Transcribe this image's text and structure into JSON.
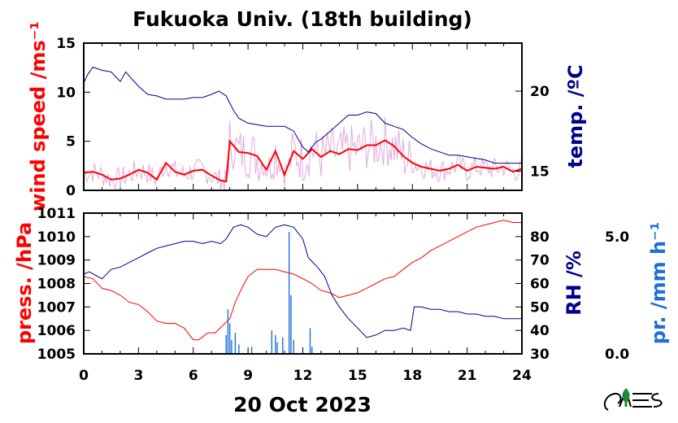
{
  "chart_data": [
    {
      "type": "line",
      "title": "Fukuoka Univ. (18th building)",
      "x_ticks": [
        "0",
        "3",
        "6",
        "9",
        "12",
        "15",
        "18",
        "21",
        "24"
      ],
      "xlim": [
        0,
        24
      ],
      "left_axis": {
        "label": "wind speed /ms⁻¹",
        "color": "#ff0000",
        "ylim": [
          0,
          15
        ],
        "ticks": [
          "0",
          "5",
          "10",
          "15"
        ]
      },
      "right_axis": {
        "label": "temp. /ºC",
        "color": "#00008b",
        "ylim": [
          13.8,
          23.0
        ],
        "ticks": [
          "15",
          "20"
        ]
      },
      "series": [
        {
          "axis": "left",
          "color": "#ff0000",
          "x": [
            0,
            0.5,
            1,
            1.5,
            2,
            2.5,
            3,
            3.5,
            4,
            4.5,
            5,
            5.5,
            6,
            6.5,
            7,
            7.5,
            7.8,
            8,
            8.5,
            9,
            9.5,
            10,
            10.5,
            11,
            11.5,
            12,
            12.5,
            13,
            13.5,
            14,
            14.5,
            15,
            15.5,
            16,
            16.5,
            17,
            17.5,
            18,
            18.5,
            19,
            19.5,
            20,
            20.5,
            21,
            21.5,
            22,
            22.5,
            23,
            23.5,
            24
          ],
          "y": [
            1.8,
            1.9,
            1.6,
            1.1,
            1.2,
            1.6,
            2.1,
            1.8,
            1.1,
            2.8,
            1.9,
            1.6,
            2.0,
            2.1,
            1.5,
            1.0,
            0.9,
            5.0,
            3.9,
            3.8,
            3.5,
            2.1,
            4.0,
            1.6,
            4.0,
            3.2,
            4.2,
            3.4,
            4.0,
            3.7,
            4.2,
            4.1,
            4.6,
            4.6,
            5.1,
            4.5,
            3.5,
            2.8,
            2.4,
            2.2,
            2.0,
            2.2,
            2.6,
            2.0,
            2.4,
            2.3,
            2.2,
            2.4,
            1.9,
            2.2
          ]
        },
        {
          "axis": "right",
          "color": "#00008b",
          "x": [
            0,
            0.2,
            0.5,
            1,
            1.5,
            2,
            2.3,
            2.6,
            3,
            3.5,
            4,
            4.5,
            5,
            5.5,
            6,
            6.5,
            7,
            7.4,
            7.8,
            8.2,
            8.5,
            9,
            9.5,
            10,
            10.5,
            11,
            11.5,
            12,
            12.3,
            12.7,
            13,
            13.5,
            14,
            14.5,
            15,
            15.5,
            16,
            16.5,
            17,
            17.5,
            18,
            18.5,
            19,
            19.5,
            20,
            20.5,
            21,
            21.5,
            22,
            22.5,
            23,
            23.5,
            24
          ],
          "y": [
            20.5,
            21.0,
            21.5,
            21.3,
            21.2,
            20.6,
            21.2,
            20.8,
            20.3,
            19.8,
            19.7,
            19.5,
            19.5,
            19.5,
            19.6,
            19.6,
            19.8,
            20.0,
            19.7,
            18.8,
            18.3,
            18.0,
            17.9,
            17.8,
            17.8,
            17.8,
            17.5,
            16.5,
            16.2,
            16.8,
            17.0,
            17.5,
            18.0,
            18.5,
            18.5,
            18.7,
            18.6,
            18.0,
            17.8,
            17.6,
            17.1,
            16.7,
            16.4,
            16.2,
            16.0,
            16.0,
            15.9,
            15.8,
            15.7,
            15.5,
            15.5,
            15.5,
            15.5
          ]
        }
      ]
    },
    {
      "type": "line",
      "x_ticks": [
        "0",
        "3",
        "6",
        "9",
        "12",
        "15",
        "18",
        "21",
        "24"
      ],
      "xlim": [
        0,
        24
      ],
      "xlabel": "20 Oct 2023",
      "left_axis": {
        "label": "press. /hPa",
        "color": "#ff0000",
        "ylim": [
          1005,
          1011
        ],
        "ticks": [
          "1005",
          "1006",
          "1007",
          "1008",
          "1009",
          "1010",
          "1011"
        ]
      },
      "right_axis": {
        "label": "RH /%",
        "color": "#00008b",
        "ylim": [
          30,
          90
        ],
        "ticks": [
          "30",
          "40",
          "50",
          "60",
          "70",
          "80"
        ]
      },
      "far_right_axis": {
        "label": "pr. /mm h⁻¹",
        "color": "#1e6fd9",
        "ylim": [
          0,
          6
        ],
        "ticks": [
          "0.0",
          "5.0"
        ]
      },
      "series": [
        {
          "axis": "left",
          "color": "#ff0000",
          "x": [
            0,
            0.5,
            1,
            1.5,
            2,
            2.5,
            3,
            3.5,
            4,
            4.5,
            5,
            5.5,
            6,
            6.3,
            6.8,
            7.2,
            7.6,
            8,
            8.3,
            8.6,
            9,
            9.5,
            10,
            10.5,
            11,
            11.5,
            12,
            12.5,
            13,
            13.5,
            14,
            14.5,
            15,
            15.5,
            16,
            16.5,
            17,
            17.5,
            18,
            18.5,
            19,
            19.5,
            20,
            20.5,
            21,
            21.5,
            22,
            22.5,
            23,
            23.5,
            24
          ],
          "y": [
            1008.3,
            1008.2,
            1007.8,
            1007.7,
            1007.5,
            1007.2,
            1007.1,
            1006.8,
            1006.4,
            1006.3,
            1006.3,
            1006.1,
            1005.6,
            1005.6,
            1005.9,
            1005.9,
            1006.2,
            1006.5,
            1007.2,
            1007.7,
            1008.3,
            1008.6,
            1008.6,
            1008.6,
            1008.5,
            1008.4,
            1008.2,
            1008.0,
            1007.7,
            1007.6,
            1007.4,
            1007.5,
            1007.6,
            1007.8,
            1008.0,
            1008.2,
            1008.3,
            1008.6,
            1008.9,
            1009.1,
            1009.4,
            1009.6,
            1009.8,
            1010.0,
            1010.2,
            1010.4,
            1010.5,
            1010.6,
            1010.7,
            1010.6,
            1010.6
          ]
        },
        {
          "axis": "right",
          "color": "#00008b",
          "x": [
            0,
            0.3,
            1,
            1.5,
            2,
            2.5,
            3,
            3.5,
            4,
            4.5,
            5,
            5.5,
            6,
            6.5,
            7,
            7.5,
            7.8,
            8.2,
            8.6,
            9,
            9.5,
            10,
            10.5,
            11,
            11.5,
            12,
            12.3,
            12.8,
            13.2,
            13.6,
            14,
            14.5,
            15,
            15.5,
            16,
            16.5,
            17,
            17.5,
            17.9,
            18.1,
            18.5,
            19,
            19.5,
            20,
            20.5,
            21,
            21.5,
            22,
            22.5,
            23,
            23.5,
            24
          ],
          "y": [
            64,
            65,
            62,
            66,
            67,
            69,
            71,
            73,
            75,
            76,
            77,
            78,
            78,
            77,
            78,
            77,
            79,
            84,
            85,
            84,
            81,
            80,
            84,
            85,
            84,
            79,
            71,
            67,
            63,
            55,
            50,
            45,
            41,
            37,
            38,
            40,
            40,
            41,
            40,
            50,
            50,
            49,
            49,
            48,
            48,
            47,
            47,
            46,
            46,
            45,
            45,
            45
          ]
        }
      ]
    }
  ]
}
